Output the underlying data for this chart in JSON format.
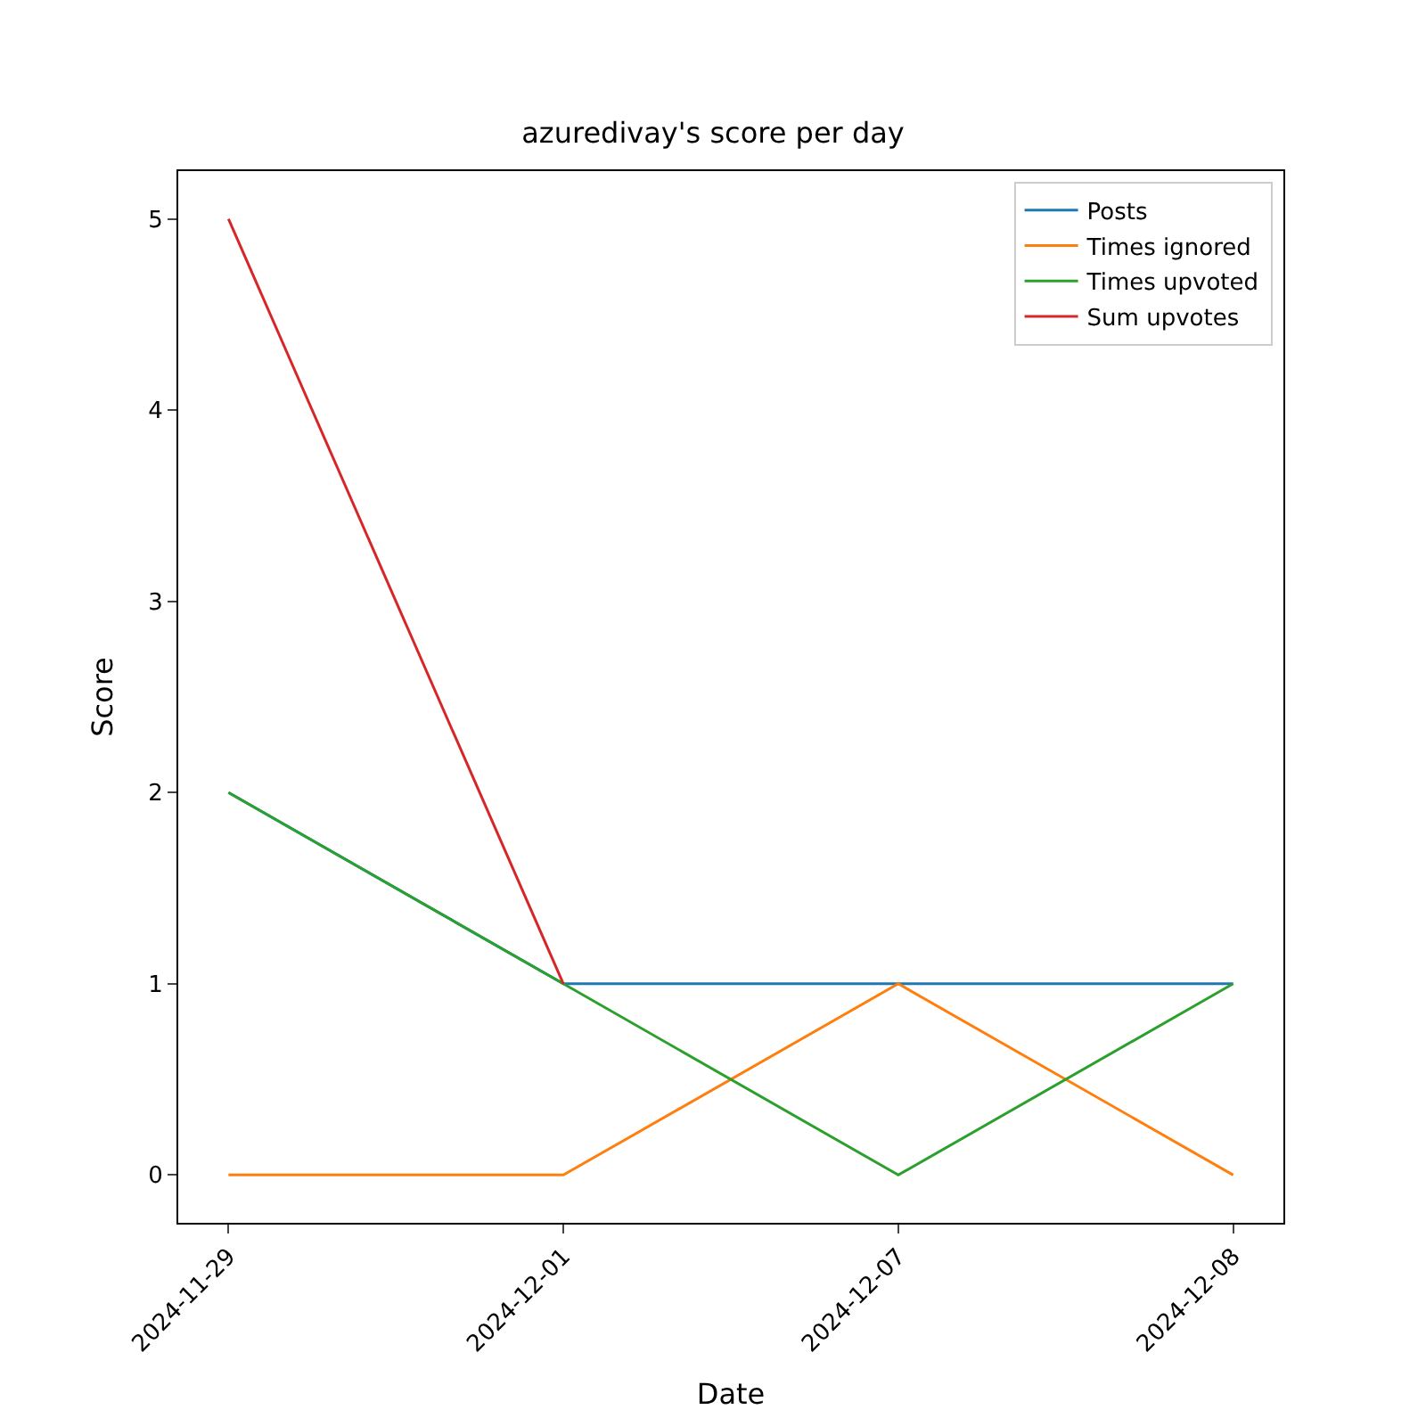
{
  "chart_data": {
    "type": "line",
    "title": "azuredivay's score per day",
    "xlabel": "Date",
    "ylabel": "Score",
    "categories": [
      "2024-11-29",
      "2024-12-01",
      "2024-12-07",
      "2024-12-08"
    ],
    "series": [
      {
        "name": "Posts",
        "color": "#1f77b4",
        "values": [
          2,
          1,
          1,
          1
        ]
      },
      {
        "name": "Times ignored",
        "color": "#ff7f0e",
        "values": [
          0,
          0,
          1,
          0
        ]
      },
      {
        "name": "Times upvoted",
        "color": "#2ca02c",
        "values": [
          2,
          1,
          0,
          1
        ]
      },
      {
        "name": "Sum upvotes",
        "color": "#d62728",
        "values": [
          5,
          1,
          null,
          null
        ]
      }
    ],
    "ylim": [
      -0.25,
      5.25
    ],
    "yticks": [
      0,
      1,
      2,
      3,
      4,
      5
    ],
    "legend": "top right",
    "marker": "none",
    "line_style": "solid"
  }
}
